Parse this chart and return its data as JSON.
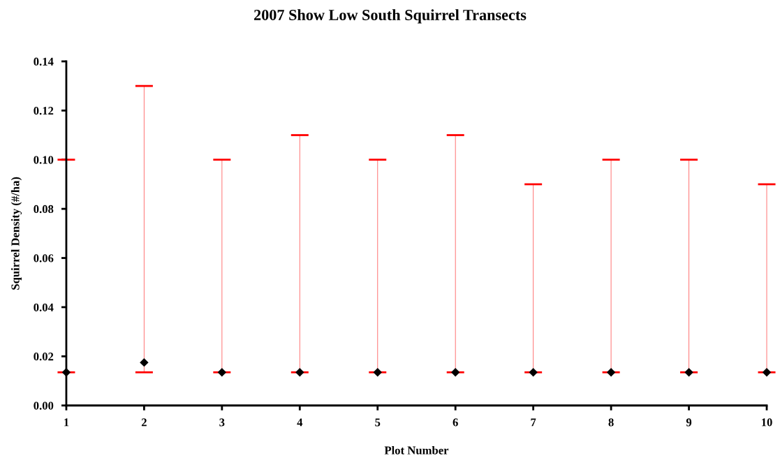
{
  "chart_data": {
    "type": "scatter",
    "title": "2007 Show Low South Squirrel Transects",
    "xlabel": "Plot Number",
    "ylabel": "Squirrel Density (#/ha)",
    "x": [
      1,
      2,
      3,
      4,
      5,
      6,
      7,
      8,
      9,
      10
    ],
    "series": [
      {
        "color": "#ff0000",
        "colors": [
          "#000000",
          "#000000",
          "#000000",
          "#000000",
          "#000000",
          "#000000",
          "#000000",
          "#000000",
          "#000000",
          "#000000"
        ],
        "marker": "diamond",
        "values": [
          0.0135,
          0.0175,
          0.0135,
          0.0135,
          0.0135,
          0.0135,
          0.0135,
          0.0135,
          0.0135,
          0.0135
        ],
        "errors": [
          [
            0.0135,
            0.1
          ],
          [
            0.0135,
            0.13
          ],
          [
            0.0135,
            0.1
          ],
          [
            0.0135,
            0.11
          ],
          [
            0.0135,
            0.1
          ],
          [
            0.0135,
            0.11
          ],
          [
            0.0135,
            0.09
          ],
          [
            0.0135,
            0.1
          ],
          [
            0.0135,
            0.1
          ],
          [
            0.0135,
            0.09
          ]
        ]
      }
    ],
    "xlim": [
      1,
      10
    ],
    "xticks": [
      1,
      2,
      3,
      4,
      5,
      6,
      7,
      8,
      9,
      10
    ],
    "ylim": [
      0,
      0.14
    ],
    "yticks": [
      {
        "value": 0,
        "label": "0.00"
      },
      {
        "value": 0.02,
        "label": "0.02"
      },
      {
        "value": 0.04,
        "label": "0.04"
      },
      {
        "value": 0.06,
        "label": "0.06"
      },
      {
        "value": 0.08,
        "label": "0.08"
      },
      {
        "value": 0.1,
        "label": "0.10"
      },
      {
        "value": 0.12,
        "label": "0.12"
      },
      {
        "value": 0.14,
        "label": "0.14"
      }
    ],
    "grid": false,
    "legend": false
  }
}
